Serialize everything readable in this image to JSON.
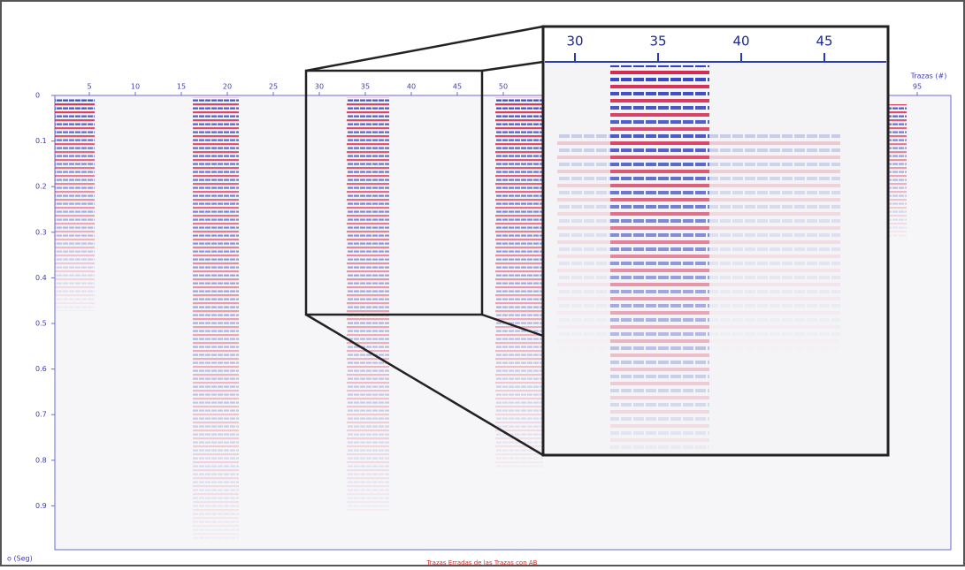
{
  "main_plot": {
    "x_axis_label": "Trazas (#)",
    "y_axis_label": "o (Seg)",
    "caption": "Trazas Erradas de las Trazas con AB",
    "xticks": [
      5,
      10,
      15,
      20,
      25,
      30,
      35,
      40,
      45,
      50,
      95
    ],
    "yticks": [
      0,
      0.1,
      0.2,
      0.3,
      0.4,
      0.5,
      0.6,
      0.7,
      0.8,
      0.9
    ]
  },
  "zoom_inset": {
    "xticks": [
      30,
      35,
      40,
      45
    ]
  }
}
